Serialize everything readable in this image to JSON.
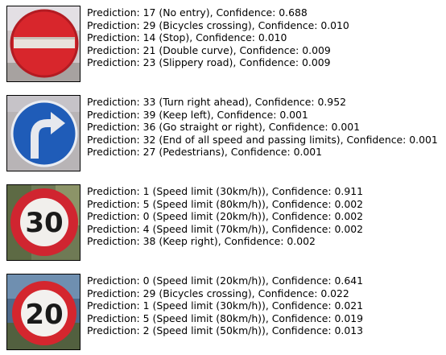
{
  "results": [
    {
      "image": "no-entry-sign-photo",
      "predictions": [
        "Prediction: 17 (No entry), Confidence: 0.688",
        "Prediction: 29 (Bicycles crossing), Confidence: 0.010",
        "Prediction: 14 (Stop), Confidence: 0.010",
        "Prediction: 21 (Double curve), Confidence: 0.009",
        "Prediction: 23 (Slippery road), Confidence: 0.009"
      ]
    },
    {
      "image": "turn-right-ahead-sign-photo",
      "predictions": [
        "Prediction: 33 (Turn right ahead), Confidence: 0.952",
        "Prediction: 39 (Keep left), Confidence: 0.001",
        "Prediction: 36 (Go straight or right), Confidence: 0.001",
        "Prediction: 32 (End of all speed and passing limits), Confidence: 0.001",
        "Prediction: 27 (Pedestrians), Confidence: 0.001"
      ]
    },
    {
      "image": "speed-limit-30-sign-photo",
      "sign_number": "30",
      "predictions": [
        "Prediction: 1 (Speed limit (30km/h)), Confidence: 0.911",
        "Prediction: 5 (Speed limit (80km/h)), Confidence: 0.002",
        "Prediction: 0 (Speed limit (20km/h)), Confidence: 0.002",
        "Prediction: 4 (Speed limit (70km/h)), Confidence: 0.002",
        "Prediction: 38 (Keep right), Confidence: 0.002"
      ]
    },
    {
      "image": "speed-limit-20-sign-photo",
      "sign_number": "20",
      "predictions": [
        "Prediction: 0 (Speed limit (20km/h)), Confidence: 0.641",
        "Prediction: 29 (Bicycles crossing), Confidence: 0.022",
        "Prediction: 1 (Speed limit (30km/h)), Confidence: 0.021",
        "Prediction: 5 (Speed limit (80km/h)), Confidence: 0.019",
        "Prediction: 2 (Speed limit (50km/h)), Confidence: 0.013"
      ]
    }
  ],
  "colors": {
    "sign_red": "#d8262c",
    "sign_blue": "#1f5cb8",
    "text": "#000000"
  }
}
